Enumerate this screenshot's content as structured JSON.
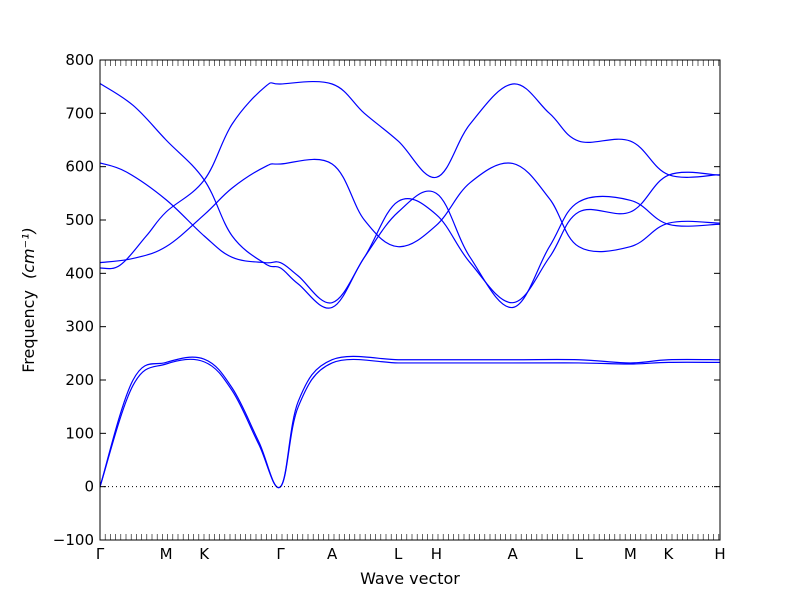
{
  "chart_data": {
    "type": "line",
    "title": "",
    "xlabel": "Wave vector",
    "ylabel": "Frequency",
    "ylabel_unit": "(cm⁻¹)",
    "ylim": [
      -100,
      800
    ],
    "yticks": [
      -100,
      0,
      100,
      200,
      300,
      400,
      500,
      600,
      700,
      800
    ],
    "zero_line": "dotted",
    "grid": false,
    "legend": "none",
    "line_color": "#0000ff",
    "xticks": [
      {
        "label": "Γ",
        "x": 0.0
      },
      {
        "label": "M",
        "x": 1.0
      },
      {
        "label": "K",
        "x": 1.577
      },
      {
        "label": "Γ",
        "x": 2.732
      },
      {
        "label": "A",
        "x": 3.512
      },
      {
        "label": "L",
        "x": 4.512
      },
      {
        "label": "H",
        "x": 5.089
      },
      {
        "label": "A",
        "x": 6.244
      },
      {
        "label": "L",
        "x": 7.244
      },
      {
        "label": "M",
        "x": 8.024
      },
      {
        "label": "K",
        "x": 8.601
      },
      {
        "label": "H",
        "x": 9.381
      }
    ],
    "series": [
      {
        "values": [
          [
            0,
            0
          ],
          [
            0.5,
            190
          ],
          [
            1.0,
            230
          ],
          [
            1.577,
            234
          ],
          [
            2.0,
            180
          ],
          [
            2.4,
            80
          ],
          [
            2.732,
            0
          ],
          [
            3.0,
            150
          ],
          [
            3.512,
            232
          ],
          [
            4.512,
            232
          ],
          [
            5.089,
            232
          ],
          [
            6.244,
            232
          ],
          [
            7.244,
            232
          ],
          [
            8.024,
            230
          ],
          [
            8.601,
            233
          ],
          [
            9.381,
            233
          ]
        ]
      },
      {
        "values": [
          [
            0,
            0
          ],
          [
            0.5,
            200
          ],
          [
            1.0,
            233
          ],
          [
            1.577,
            239
          ],
          [
            2.0,
            185
          ],
          [
            2.4,
            85
          ],
          [
            2.732,
            0
          ],
          [
            3.0,
            160
          ],
          [
            3.512,
            238
          ],
          [
            4.512,
            238
          ],
          [
            5.089,
            238
          ],
          [
            6.244,
            238
          ],
          [
            7.244,
            238
          ],
          [
            8.024,
            232
          ],
          [
            8.601,
            238
          ],
          [
            9.381,
            238
          ]
        ]
      },
      {
        "values": [
          [
            0,
            410
          ],
          [
            0.3,
            415
          ],
          [
            0.7,
            470
          ],
          [
            1.0,
            515
          ],
          [
            1.577,
            575
          ],
          [
            2.0,
            680
          ],
          [
            2.5,
            750
          ],
          [
            2.732,
            755
          ],
          [
            3.512,
            755
          ],
          [
            4.0,
            700
          ],
          [
            4.512,
            648
          ],
          [
            5.089,
            580
          ],
          [
            5.6,
            680
          ],
          [
            6.244,
            755
          ],
          [
            6.8,
            700
          ],
          [
            7.244,
            648
          ],
          [
            8.024,
            648
          ],
          [
            8.601,
            585
          ],
          [
            9.381,
            585
          ]
        ]
      },
      {
        "values": [
          [
            0,
            420
          ],
          [
            0.5,
            428
          ],
          [
            1.0,
            450
          ],
          [
            1.577,
            510
          ],
          [
            2.0,
            560
          ],
          [
            2.5,
            600
          ],
          [
            2.732,
            605
          ],
          [
            3.512,
            605
          ],
          [
            4.0,
            500
          ],
          [
            4.512,
            450
          ],
          [
            5.089,
            490
          ],
          [
            5.6,
            570
          ],
          [
            6.244,
            606
          ],
          [
            6.8,
            540
          ],
          [
            7.244,
            450
          ],
          [
            8.024,
            450
          ],
          [
            8.601,
            494
          ],
          [
            9.381,
            494
          ]
        ]
      },
      {
        "values": [
          [
            0,
            607
          ],
          [
            0.4,
            590
          ],
          [
            1.0,
            538
          ],
          [
            1.577,
            470
          ],
          [
            2.0,
            430
          ],
          [
            2.5,
            420
          ],
          [
            2.732,
            420
          ],
          [
            3.0,
            395
          ],
          [
            3.512,
            345
          ],
          [
            4.0,
            430
          ],
          [
            4.512,
            535
          ],
          [
            5.089,
            510
          ],
          [
            5.6,
            420
          ],
          [
            6.244,
            345
          ],
          [
            6.8,
            430
          ],
          [
            7.244,
            515
          ],
          [
            8.024,
            515
          ],
          [
            8.601,
            584
          ],
          [
            9.381,
            584
          ]
        ]
      },
      {
        "values": [
          [
            0,
            756
          ],
          [
            0.5,
            715
          ],
          [
            1.0,
            650
          ],
          [
            1.577,
            575
          ],
          [
            2.0,
            470
          ],
          [
            2.5,
            418
          ],
          [
            2.732,
            410
          ],
          [
            3.0,
            380
          ],
          [
            3.512,
            336
          ],
          [
            4.0,
            430
          ],
          [
            4.512,
            515
          ],
          [
            5.089,
            550
          ],
          [
            5.6,
            430
          ],
          [
            6.244,
            336
          ],
          [
            6.8,
            450
          ],
          [
            7.244,
            534
          ],
          [
            8.024,
            537
          ],
          [
            8.601,
            492
          ],
          [
            9.381,
            492
          ]
        ]
      }
    ]
  }
}
